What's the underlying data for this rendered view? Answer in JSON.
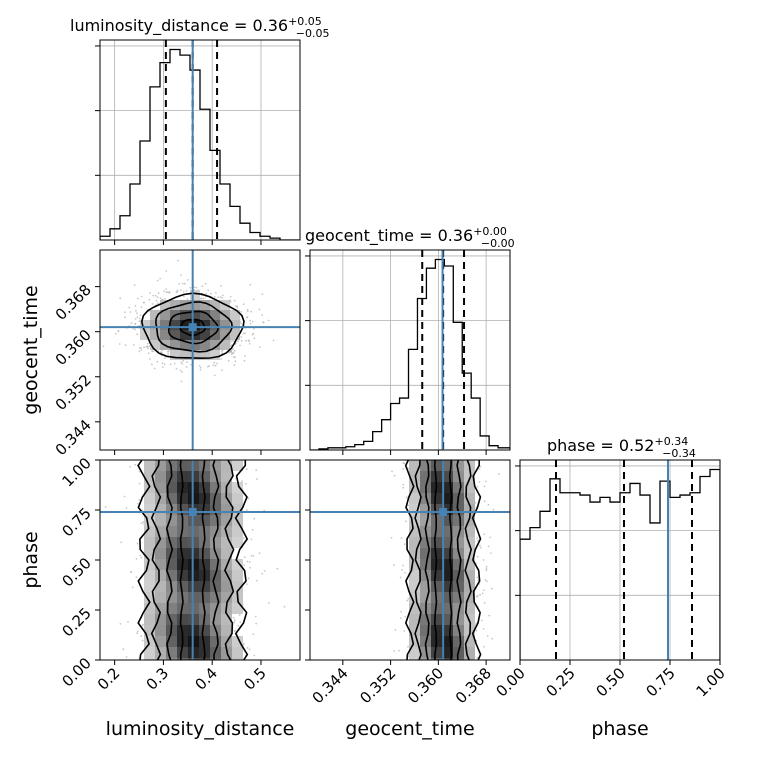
{
  "chart_data": [
    {
      "type": "histogram",
      "panel": "luminosity_distance",
      "title": "luminosity_distance = 0.36",
      "title_sup": "+0.05",
      "title_sub": "−0.05",
      "xlim": [
        0.17,
        0.58
      ],
      "bins": [
        0.17,
        0.1905,
        0.211,
        0.2315,
        0.252,
        0.2725,
        0.293,
        0.3135,
        0.334,
        0.3545,
        0.375,
        0.3955,
        0.416,
        0.4365,
        0.457,
        0.4775,
        0.498,
        0.5185,
        0.539,
        0.5595,
        0.58
      ],
      "counts": [
        2,
        6,
        13,
        30,
        53,
        82,
        95,
        102,
        99,
        91,
        70,
        48,
        30,
        18,
        9,
        4,
        2,
        1,
        0,
        0
      ],
      "quantiles": [
        0.305,
        0.36,
        0.41
      ],
      "truth": 0.36
    },
    {
      "type": "histogram",
      "panel": "geocent_time",
      "title": "geocent_time = 0.36",
      "title_sup": "+0.00",
      "title_sub": "−0.00",
      "xlim": [
        0.3385,
        0.372
      ],
      "bins": [
        0.3385,
        0.34,
        0.3415,
        0.343,
        0.3445,
        0.346,
        0.3475,
        0.349,
        0.3505,
        0.352,
        0.3535,
        0.355,
        0.3565,
        0.358,
        0.3595,
        0.361,
        0.3625,
        0.364,
        0.3655,
        0.367,
        0.3685,
        0.37,
        0.372
      ],
      "counts": [
        0,
        1,
        2,
        2,
        3,
        5,
        8,
        17,
        28,
        43,
        48,
        93,
        140,
        168,
        176,
        170,
        118,
        71,
        48,
        13,
        4,
        2
      ],
      "quantiles": [
        0.3573,
        0.3608,
        0.3643
      ],
      "truth": 0.3607
    },
    {
      "type": "histogram",
      "panel": "phase",
      "title": "phase = 0.52",
      "title_sup": "+0.34",
      "title_sub": "−0.34",
      "xlim": [
        0.0,
        1.0
      ],
      "bins": [
        0.0,
        0.05,
        0.1,
        0.15,
        0.2,
        0.25,
        0.3,
        0.35,
        0.4,
        0.45,
        0.5,
        0.55,
        0.6,
        0.65,
        0.7,
        0.75,
        0.8,
        0.85,
        0.9,
        0.95,
        1.0
      ],
      "counts": [
        52,
        57,
        64,
        78,
        72,
        72,
        71,
        68,
        70,
        68,
        72,
        76,
        71,
        59,
        77,
        70,
        71,
        72,
        79,
        82
      ],
      "quantiles": [
        0.18,
        0.52,
        0.86
      ],
      "truth": 0.74
    },
    {
      "type": "scatter",
      "panel": "geocent_time vs luminosity_distance",
      "x_param": "luminosity_distance",
      "y_param": "geocent_time",
      "xlim": [
        0.17,
        0.58
      ],
      "ylim": [
        0.339,
        0.3745
      ],
      "x_center": 0.36,
      "x_sigma": 0.05,
      "y_center": 0.3608,
      "y_sigma": 0.0028,
      "truth": [
        0.36,
        0.3608
      ]
    },
    {
      "type": "scatter",
      "panel": "phase vs luminosity_distance",
      "x_param": "luminosity_distance",
      "y_param": "phase",
      "xlim": [
        0.17,
        0.58
      ],
      "ylim": [
        0.0,
        1.0
      ],
      "x_center": 0.36,
      "x_sigma": 0.05,
      "truth": [
        0.36,
        0.74
      ]
    },
    {
      "type": "scatter",
      "panel": "phase vs geocent_time",
      "x_param": "geocent_time",
      "y_param": "phase",
      "xlim": [
        0.3385,
        0.372
      ],
      "ylim": [
        0.0,
        1.0
      ],
      "x_center": 0.3608,
      "x_sigma": 0.0028,
      "truth": [
        0.3608,
        0.74
      ]
    }
  ],
  "axes": {
    "x_labels": [
      "luminosity_distance",
      "geocent_time",
      "phase"
    ],
    "y_labels": [
      "geocent_time",
      "phase"
    ],
    "luminosity_distance_ticks": [
      "0.2",
      "0.3",
      "0.4",
      "0.5"
    ],
    "luminosity_distance_tick_values": [
      0.2,
      0.3,
      0.4,
      0.5
    ],
    "geocent_time_ticks": [
      "0.344",
      "0.352",
      "0.360",
      "0.368"
    ],
    "geocent_time_tick_values": [
      0.344,
      0.352,
      0.36,
      0.368
    ],
    "phase_ticks": [
      "0.00",
      "0.25",
      "0.50",
      "0.75",
      "1.00"
    ],
    "phase_tick_values": [
      0.0,
      0.25,
      0.5,
      0.75,
      1.0
    ]
  },
  "colors": {
    "truth": "#4682b4",
    "contour": "#000000",
    "density": "#808080",
    "points": "#b0b0b0"
  }
}
